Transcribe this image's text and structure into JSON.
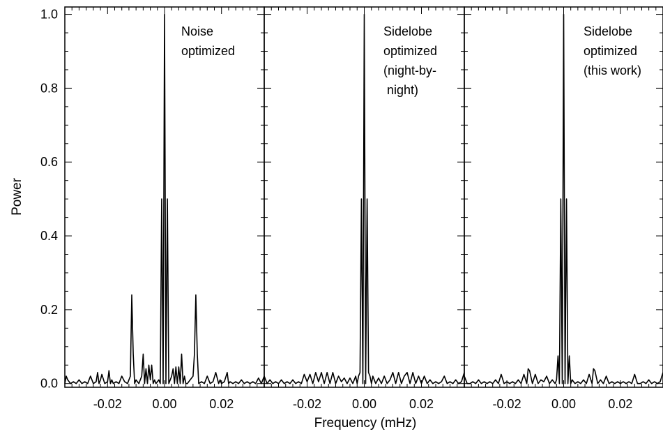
{
  "chart_data": {
    "type": "line",
    "xlabel": "Frequency (mHz)",
    "ylabel": "Power",
    "xlim": [
      -0.035,
      0.035
    ],
    "ylim": [
      -0.01,
      1.02
    ],
    "x_ticks": [
      -0.02,
      0.0,
      0.02
    ],
    "x_tick_labels": [
      "-0.02",
      "0.00",
      "0.02"
    ],
    "y_ticks": [
      0.0,
      0.2,
      0.4,
      0.6,
      0.8,
      1.0
    ],
    "y_tick_labels": [
      "0.0",
      "0.2",
      "0.4",
      "0.6",
      "0.8",
      "1.0"
    ],
    "grid": false,
    "panels": [
      {
        "label_lines": [
          "Noise",
          "optimized"
        ],
        "series": [
          {
            "x": [
              -0.035,
              -0.0345,
              -0.034,
              -0.033,
              -0.032,
              -0.031,
              -0.03,
              -0.029,
              -0.028,
              -0.027,
              -0.026,
              -0.025,
              -0.024,
              -0.0235,
              -0.023,
              -0.0225,
              -0.022,
              -0.021,
              -0.02,
              -0.0195,
              -0.019,
              -0.0185,
              -0.018,
              -0.017,
              -0.016,
              -0.015,
              -0.014,
              -0.013,
              -0.012,
              -0.0115,
              -0.011,
              -0.0105,
              -0.01,
              -0.009,
              -0.008,
              -0.0075,
              -0.007,
              -0.0065,
              -0.006,
              -0.0055,
              -0.005,
              -0.0045,
              -0.004,
              -0.0035,
              -0.003,
              -0.002,
              -0.0015,
              -0.001,
              -0.0005,
              0.0,
              0.0005,
              0.001,
              0.0015,
              0.002,
              0.0025,
              0.003,
              0.0035,
              0.004,
              0.0045,
              0.005,
              0.0055,
              0.006,
              0.0065,
              0.007,
              0.0075,
              0.008,
              0.009,
              0.01,
              0.0105,
              0.011,
              0.0115,
              0.012,
              0.013,
              0.014,
              0.015,
              0.016,
              0.017,
              0.018,
              0.019,
              0.0195,
              0.02,
              0.021,
              0.022,
              0.0225,
              0.023,
              0.024,
              0.025,
              0.026,
              0.027,
              0.028,
              0.029,
              0.03,
              0.031,
              0.032,
              0.033,
              0.034,
              0.035
            ],
            "y": [
              0.0,
              0.02,
              0.01,
              0.0,
              0.005,
              0.0,
              0.01,
              0.0,
              0.005,
              0.0,
              0.02,
              0.0,
              0.005,
              0.03,
              0.0,
              0.01,
              0.025,
              0.0,
              0.005,
              0.035,
              0.0,
              0.01,
              0.0,
              0.005,
              0.0,
              0.02,
              0.005,
              0.0,
              0.02,
              0.24,
              0.08,
              0.0,
              0.01,
              0.0,
              0.02,
              0.08,
              0.0,
              0.04,
              0.0,
              0.05,
              0.01,
              0.05,
              0.0,
              0.01,
              0.0,
              0.01,
              0.0,
              0.5,
              0.0,
              1.0,
              0.0,
              0.5,
              0.0,
              0.01,
              0.02,
              0.04,
              0.0,
              0.045,
              0.0,
              0.045,
              0.0,
              0.08,
              0.0,
              0.02,
              0.0,
              0.0,
              0.01,
              0.02,
              0.08,
              0.24,
              0.08,
              0.0,
              0.005,
              0.0,
              0.02,
              0.0,
              0.005,
              0.03,
              0.0,
              0.01,
              0.0,
              0.005,
              0.03,
              0.0,
              0.005,
              0.0,
              0.005,
              0.0,
              0.01,
              0.0,
              0.005,
              0.0,
              0.005,
              0.0,
              0.015,
              0.0,
              0.02
            ]
          }
        ]
      },
      {
        "label_lines": [
          "Sidelobe",
          "optimized",
          "(night-by-",
          " night)"
        ],
        "series": [
          {
            "x": [
              -0.035,
              -0.034,
              -0.033,
              -0.032,
              -0.031,
              -0.03,
              -0.029,
              -0.028,
              -0.027,
              -0.026,
              -0.025,
              -0.024,
              -0.023,
              -0.022,
              -0.021,
              -0.02,
              -0.019,
              -0.018,
              -0.017,
              -0.016,
              -0.015,
              -0.014,
              -0.013,
              -0.012,
              -0.011,
              -0.01,
              -0.009,
              -0.008,
              -0.007,
              -0.006,
              -0.005,
              -0.004,
              -0.003,
              -0.0025,
              -0.002,
              -0.0015,
              -0.001,
              -0.0005,
              0.0,
              0.0005,
              0.001,
              0.0015,
              0.002,
              0.0025,
              0.003,
              0.004,
              0.005,
              0.006,
              0.007,
              0.008,
              0.009,
              0.01,
              0.011,
              0.012,
              0.013,
              0.014,
              0.015,
              0.016,
              0.017,
              0.018,
              0.019,
              0.02,
              0.021,
              0.022,
              0.023,
              0.024,
              0.025,
              0.026,
              0.027,
              0.028,
              0.029,
              0.03,
              0.031,
              0.032,
              0.033,
              0.034,
              0.035
            ],
            "y": [
              0.02,
              0.0,
              0.01,
              0.0,
              0.005,
              0.0,
              0.01,
              0.0,
              0.005,
              0.0,
              0.01,
              0.0,
              0.005,
              0.0,
              0.025,
              0.005,
              0.025,
              0.0,
              0.03,
              0.005,
              0.03,
              0.0,
              0.03,
              0.0,
              0.03,
              0.0,
              0.02,
              0.005,
              0.015,
              0.0,
              0.015,
              0.0,
              0.02,
              0.0,
              0.02,
              0.03,
              0.5,
              0.0,
              1.0,
              0.0,
              0.5,
              0.03,
              0.02,
              0.0,
              0.02,
              0.0,
              0.015,
              0.0,
              0.02,
              0.0,
              0.01,
              0.03,
              0.0,
              0.03,
              0.0,
              0.02,
              0.03,
              0.0,
              0.03,
              0.0,
              0.02,
              0.0,
              0.02,
              0.0,
              0.01,
              0.0,
              0.005,
              0.0,
              0.005,
              0.02,
              0.0,
              0.005,
              0.0,
              0.01,
              0.0,
              0.005,
              0.03
            ]
          }
        ]
      },
      {
        "label_lines": [
          "Sidelobe",
          "optimized",
          "(this work)"
        ],
        "series": [
          {
            "x": [
              -0.035,
              -0.034,
              -0.033,
              -0.032,
              -0.031,
              -0.03,
              -0.029,
              -0.028,
              -0.027,
              -0.026,
              -0.025,
              -0.024,
              -0.023,
              -0.022,
              -0.021,
              -0.02,
              -0.019,
              -0.018,
              -0.017,
              -0.016,
              -0.015,
              -0.014,
              -0.013,
              -0.0125,
              -0.012,
              -0.011,
              -0.01,
              -0.009,
              -0.008,
              -0.007,
              -0.006,
              -0.005,
              -0.004,
              -0.003,
              -0.0025,
              -0.002,
              -0.0015,
              -0.001,
              -0.0005,
              0.0,
              0.0005,
              0.001,
              0.0015,
              0.002,
              0.0025,
              0.003,
              0.004,
              0.005,
              0.006,
              0.007,
              0.008,
              0.009,
              0.01,
              0.0105,
              0.011,
              0.012,
              0.013,
              0.014,
              0.015,
              0.016,
              0.017,
              0.018,
              0.019,
              0.02,
              0.021,
              0.022,
              0.023,
              0.024,
              0.025,
              0.026,
              0.027,
              0.028,
              0.029,
              0.03,
              0.031,
              0.032,
              0.033,
              0.034,
              0.035
            ],
            "y": [
              0.02,
              0.0,
              0.0,
              0.005,
              0.0,
              0.01,
              0.0,
              0.005,
              0.0,
              0.005,
              0.0,
              0.01,
              0.0,
              0.025,
              0.0,
              0.005,
              0.0,
              0.005,
              0.0,
              0.01,
              0.0,
              0.025,
              0.0,
              0.04,
              0.035,
              0.0,
              0.025,
              0.0,
              0.01,
              0.005,
              0.02,
              0.0,
              0.01,
              0.0,
              0.01,
              0.075,
              0.0,
              0.5,
              0.0,
              1.0,
              0.0,
              0.5,
              0.0,
              0.075,
              0.0,
              0.01,
              0.0,
              0.005,
              0.0,
              0.01,
              0.0,
              0.025,
              0.0,
              0.04,
              0.035,
              0.0,
              0.01,
              0.0,
              0.02,
              0.0,
              0.005,
              0.0,
              0.005,
              0.0,
              0.005,
              0.0,
              0.005,
              0.0,
              0.025,
              0.0,
              0.0,
              0.005,
              0.0,
              0.01,
              0.0,
              0.005,
              0.0,
              0.005,
              0.03
            ]
          }
        ]
      }
    ]
  }
}
